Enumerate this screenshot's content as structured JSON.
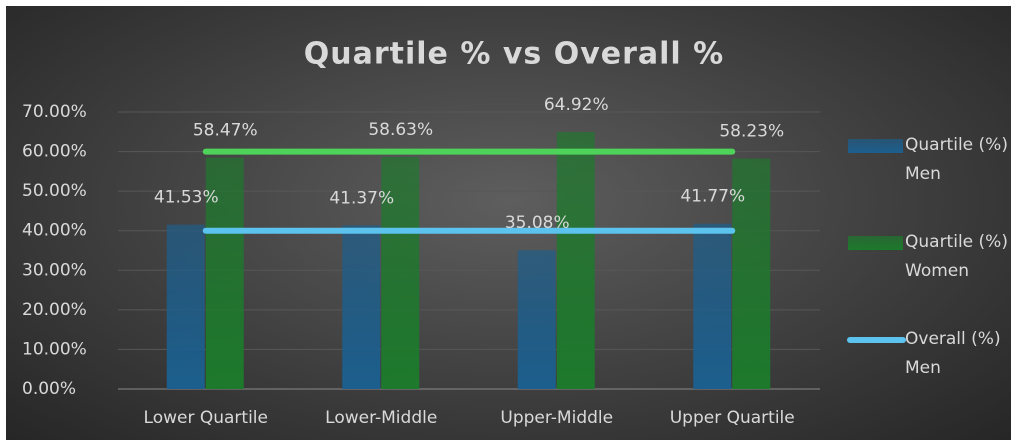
{
  "chart_data": {
    "type": "bar",
    "title": "Quartile % vs Overall %",
    "categories": [
      "Lower Quartile",
      "Lower-Middle",
      "Upper-Middle",
      "Upper Quartile"
    ],
    "series": [
      {
        "name": "Quartile (%) Men",
        "color": "#1c5f8e",
        "values": [
          41.53,
          41.37,
          35.08,
          41.77
        ],
        "value_labels": [
          "41.53%",
          "41.37%",
          "35.08%",
          "41.77%"
        ]
      },
      {
        "name": "Quartile (%) Women",
        "color": "#1d7a2c",
        "values": [
          58.47,
          58.63,
          64.92,
          58.23
        ],
        "value_labels": [
          "58.47%",
          "58.63%",
          "64.92%",
          "58.23%"
        ]
      },
      {
        "name": "Overall (%) Men",
        "type": "line",
        "color": "#5bc3ee",
        "values": [
          40,
          40,
          40,
          40
        ]
      },
      {
        "type": "line",
        "color": "#4fd25a",
        "values": [
          60,
          60,
          60,
          60
        ]
      }
    ],
    "ylim": [
      0,
      70
    ],
    "yticks": [
      {
        "value": 0,
        "label": "0.00%"
      },
      {
        "value": 10,
        "label": "10.00%"
      },
      {
        "value": 20,
        "label": "20.00%"
      },
      {
        "value": 30,
        "label": "30.00%"
      },
      {
        "value": 40,
        "label": "40.00%"
      },
      {
        "value": 50,
        "label": "50.00%"
      },
      {
        "value": 60,
        "label": "60.00%"
      },
      {
        "value": 70,
        "label": "70.00%"
      }
    ],
    "grid": true,
    "legend": "right"
  }
}
